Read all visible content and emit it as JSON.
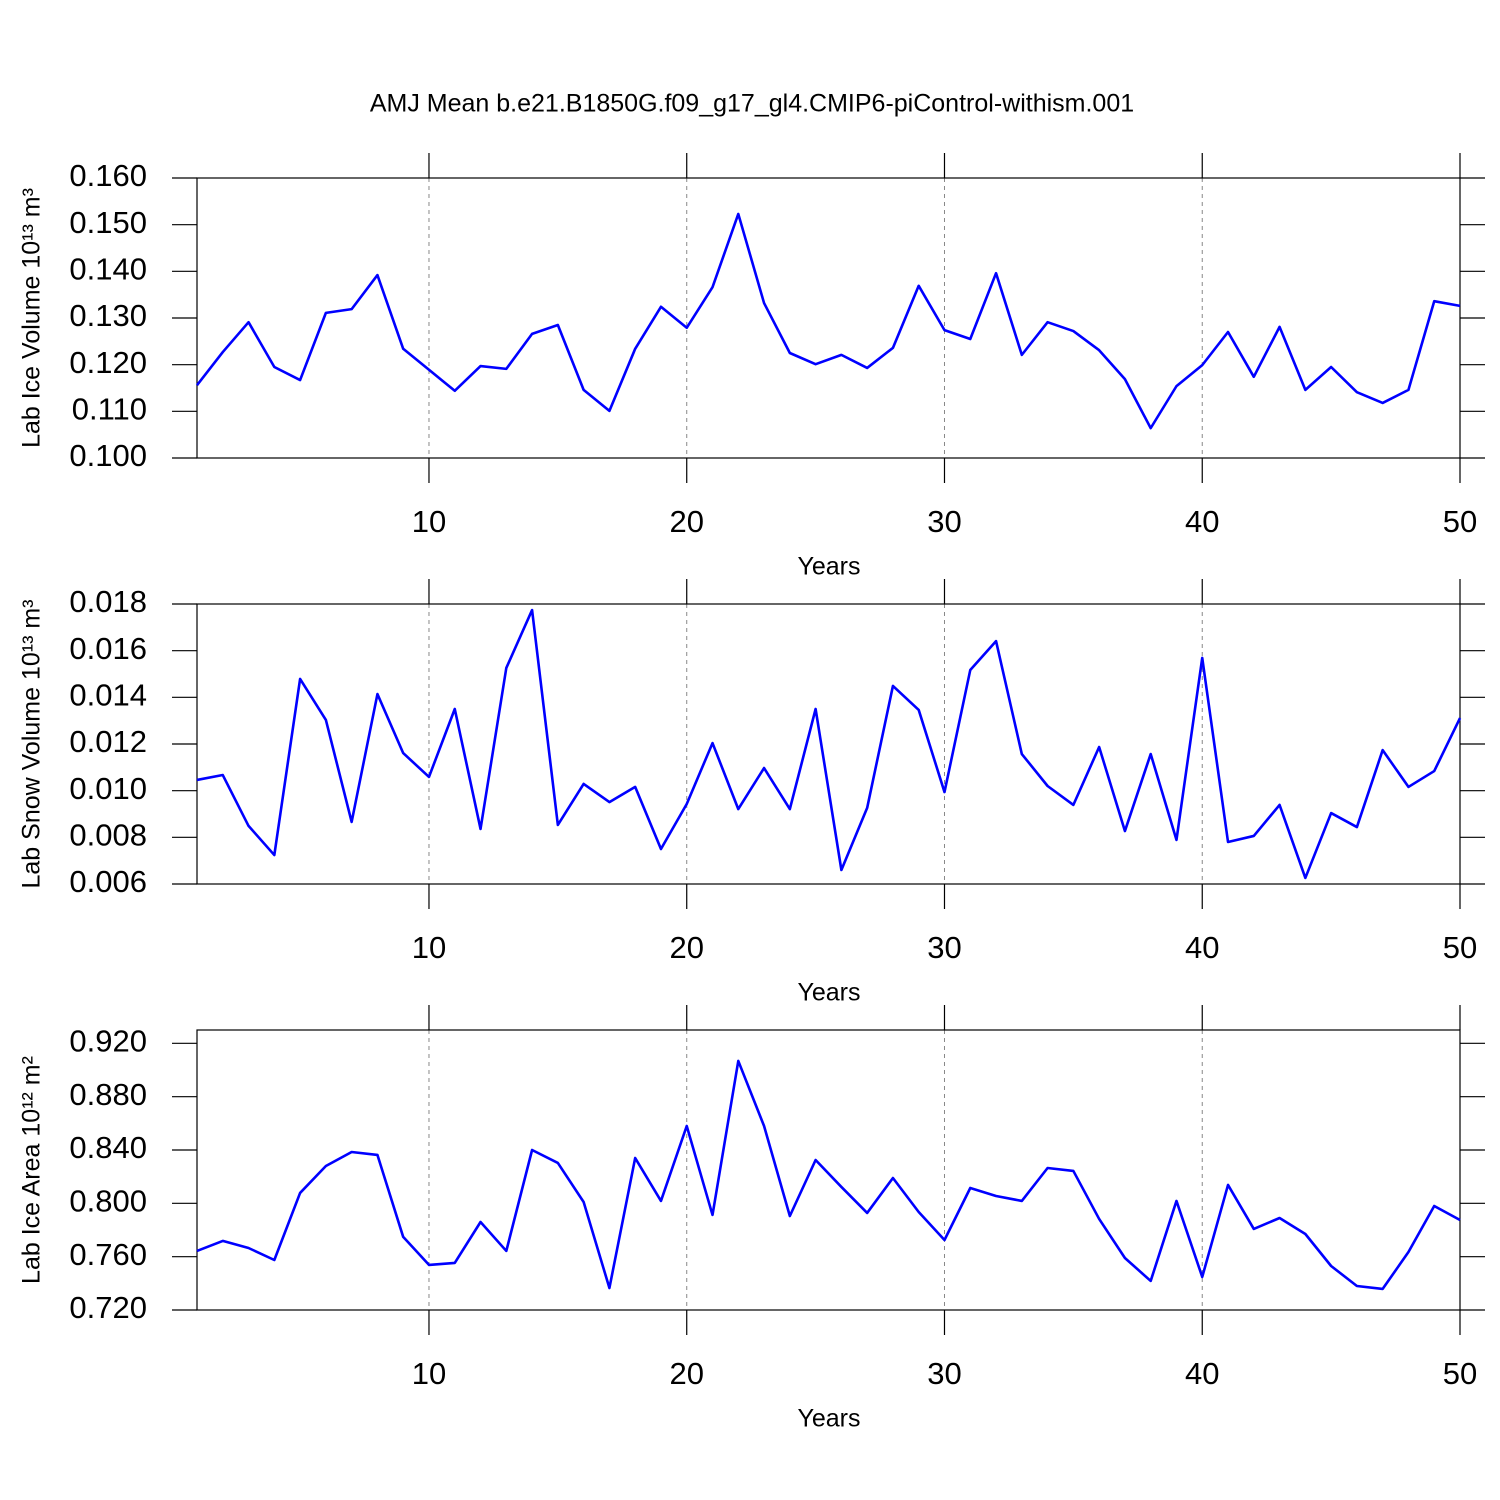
{
  "chart_data": [
    {
      "type": "line",
      "title": "AMJ Mean b.e21.B1850G.f09_g17_gl4.CMIP6-piControl-withism.001",
      "ylabel": "Lab Ice Volume 10¹³ m³",
      "xlabel": "Years",
      "color": "#0000ff",
      "grid": "x",
      "xlim": [
        1,
        50
      ],
      "xticks": [
        10,
        20,
        30,
        40,
        50
      ],
      "ylim": [
        0.1,
        0.16
      ],
      "yticks": [
        {
          "value": 0.1,
          "label": "0.100"
        },
        {
          "value": 0.11,
          "label": "0.110"
        },
        {
          "value": 0.12,
          "label": "0.120"
        },
        {
          "value": 0.13,
          "label": "0.130"
        },
        {
          "value": 0.14,
          "label": "0.140"
        },
        {
          "value": 0.15,
          "label": "0.150"
        },
        {
          "value": 0.16,
          "label": "0.160"
        }
      ],
      "x": [
        1,
        2,
        3,
        4,
        5,
        6,
        7,
        8,
        9,
        10,
        11,
        12,
        13,
        14,
        15,
        16,
        17,
        18,
        19,
        20,
        21,
        22,
        23,
        24,
        25,
        26,
        27,
        28,
        29,
        30,
        31,
        32,
        33,
        34,
        35,
        36,
        37,
        38,
        39,
        40,
        41,
        42,
        43,
        44,
        45,
        46,
        47,
        48,
        49,
        50
      ],
      "values": [
        0.1156,
        0.1227,
        0.1291,
        0.1195,
        0.1167,
        0.1311,
        0.1319,
        0.1392,
        0.1234,
        0.1189,
        0.1144,
        0.1197,
        0.1191,
        0.1266,
        0.1285,
        0.1146,
        0.1101,
        0.1234,
        0.1324,
        0.1279,
        0.1366,
        0.1523,
        0.1332,
        0.1225,
        0.1201,
        0.1221,
        0.1193,
        0.1236,
        0.1369,
        0.1274,
        0.1255,
        0.1396,
        0.1221,
        0.1291,
        0.1272,
        0.1231,
        0.1169,
        0.1064,
        0.1154,
        0.1199,
        0.127,
        0.1174,
        0.1281,
        0.1146,
        0.1195,
        0.1141,
        0.1118,
        0.1146,
        0.1336,
        0.1326
      ]
    },
    {
      "type": "line",
      "ylabel": "Lab Snow Volume 10¹³ m³",
      "xlabel": "Years",
      "color": "#0000ff",
      "grid": "x",
      "xlim": [
        1,
        50
      ],
      "xticks": [
        10,
        20,
        30,
        40,
        50
      ],
      "ylim": [
        0.006,
        0.018
      ],
      "yticks": [
        {
          "value": 0.006,
          "label": "0.006"
        },
        {
          "value": 0.008,
          "label": "0.008"
        },
        {
          "value": 0.01,
          "label": "0.010"
        },
        {
          "value": 0.012,
          "label": "0.012"
        },
        {
          "value": 0.014,
          "label": "0.014"
        },
        {
          "value": 0.016,
          "label": "0.016"
        },
        {
          "value": 0.018,
          "label": "0.018"
        }
      ],
      "x": [
        1,
        2,
        3,
        4,
        5,
        6,
        7,
        8,
        9,
        10,
        11,
        12,
        13,
        14,
        15,
        16,
        17,
        18,
        19,
        20,
        21,
        22,
        23,
        24,
        25,
        26,
        27,
        28,
        29,
        30,
        31,
        32,
        33,
        34,
        35,
        36,
        37,
        38,
        39,
        40,
        41,
        42,
        43,
        44,
        45,
        46,
        47,
        48,
        49,
        50
      ],
      "values": [
        0.01046,
        0.01067,
        0.00849,
        0.00724,
        0.01479,
        0.01303,
        0.00866,
        0.01414,
        0.01161,
        0.01059,
        0.0135,
        0.00836,
        0.01526,
        0.01774,
        0.00853,
        0.01029,
        0.00951,
        0.01016,
        0.0075,
        0.00943,
        0.01204,
        0.00921,
        0.01097,
        0.00921,
        0.0135,
        0.0066,
        0.00926,
        0.01449,
        0.01346,
        0.00994,
        0.01517,
        0.01641,
        0.01157,
        0.0102,
        0.00939,
        0.01187,
        0.00827,
        0.01157,
        0.00789,
        0.01569,
        0.0078,
        0.00806,
        0.00939,
        0.00626,
        0.00904,
        0.00844,
        0.01174,
        0.01016,
        0.01084,
        0.01311
      ]
    },
    {
      "type": "line",
      "ylabel": "Lab Ice Area 10¹² m²",
      "xlabel": "Years",
      "color": "#0000ff",
      "grid": "x",
      "xlim": [
        1,
        50
      ],
      "xticks": [
        10,
        20,
        30,
        40,
        50
      ],
      "ylim": [
        0.72,
        0.93
      ],
      "yticks": [
        {
          "value": 0.72,
          "label": "0.720"
        },
        {
          "value": 0.76,
          "label": "0.760"
        },
        {
          "value": 0.8,
          "label": "0.800"
        },
        {
          "value": 0.84,
          "label": "0.840"
        },
        {
          "value": 0.88,
          "label": "0.880"
        },
        {
          "value": 0.92,
          "label": "0.920"
        }
      ],
      "x": [
        1,
        2,
        3,
        4,
        5,
        6,
        7,
        8,
        9,
        10,
        11,
        12,
        13,
        14,
        15,
        16,
        17,
        18,
        19,
        20,
        21,
        22,
        23,
        24,
        25,
        26,
        27,
        28,
        29,
        30,
        31,
        32,
        33,
        34,
        35,
        36,
        37,
        38,
        39,
        40,
        41,
        42,
        43,
        44,
        45,
        46,
        47,
        48,
        49,
        50
      ],
      "values": [
        0.7643,
        0.7718,
        0.7665,
        0.7575,
        0.8078,
        0.828,
        0.8385,
        0.8363,
        0.7748,
        0.7538,
        0.7553,
        0.786,
        0.7643,
        0.84,
        0.8303,
        0.801,
        0.7365,
        0.834,
        0.8018,
        0.858,
        0.7913,
        0.9068,
        0.858,
        0.7905,
        0.8325,
        0.8123,
        0.7928,
        0.819,
        0.7935,
        0.7725,
        0.8115,
        0.8055,
        0.8018,
        0.8265,
        0.8243,
        0.7883,
        0.759,
        0.7418,
        0.8018,
        0.7448,
        0.8138,
        0.7808,
        0.789,
        0.777,
        0.753,
        0.738,
        0.7358,
        0.7635,
        0.798,
        0.7875
      ]
    }
  ]
}
